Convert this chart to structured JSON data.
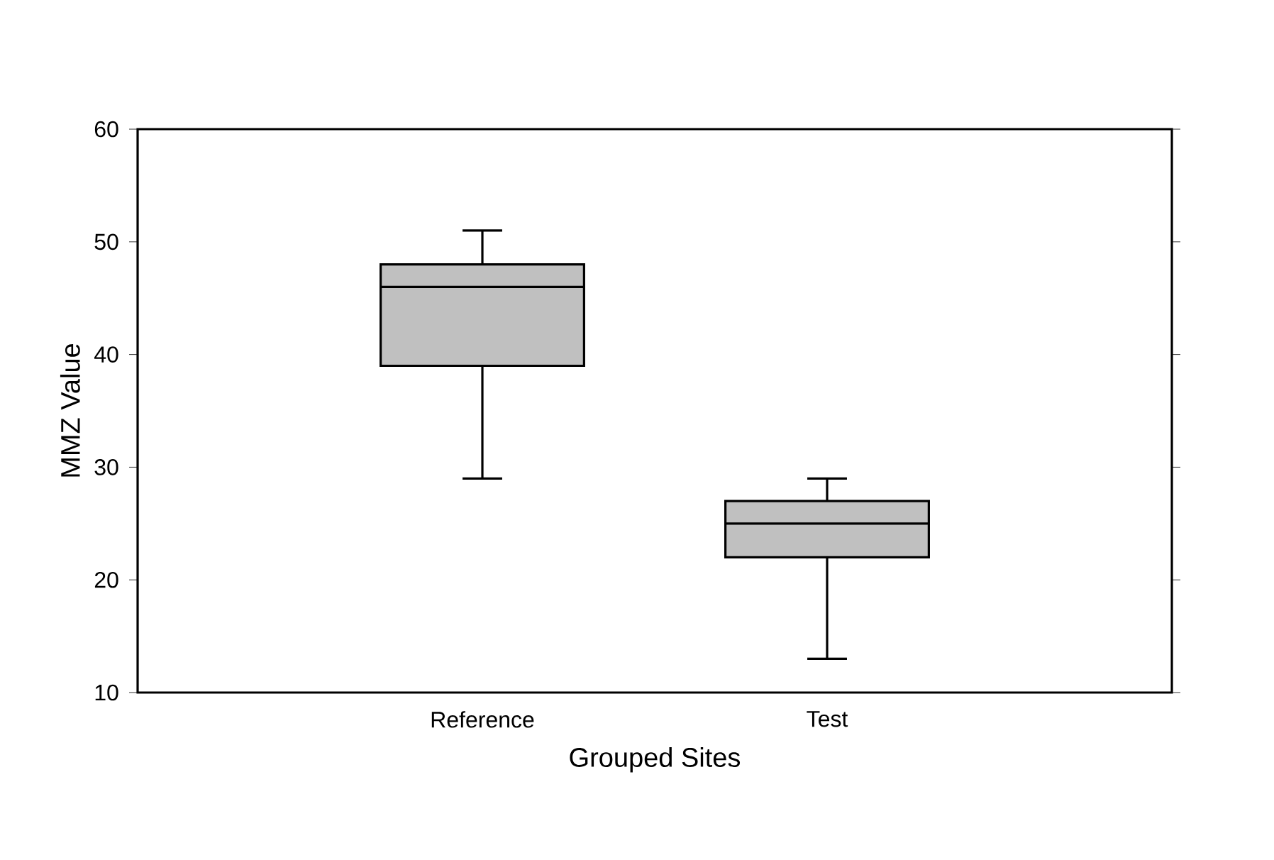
{
  "chart_data": {
    "type": "box",
    "xlabel": "Grouped Sites",
    "ylabel": "MMZ Value",
    "categories": [
      "Reference",
      "Test"
    ],
    "boxes": [
      {
        "low": 29,
        "q1": 39,
        "median": 46,
        "q3": 48,
        "high": 51
      },
      {
        "low": 13,
        "q1": 22,
        "median": 25,
        "q3": 27,
        "high": 29
      }
    ],
    "color": "#c0c0c0",
    "ylim": [
      10,
      60
    ],
    "yticks": [
      10,
      20,
      30,
      40,
      50,
      60
    ]
  }
}
